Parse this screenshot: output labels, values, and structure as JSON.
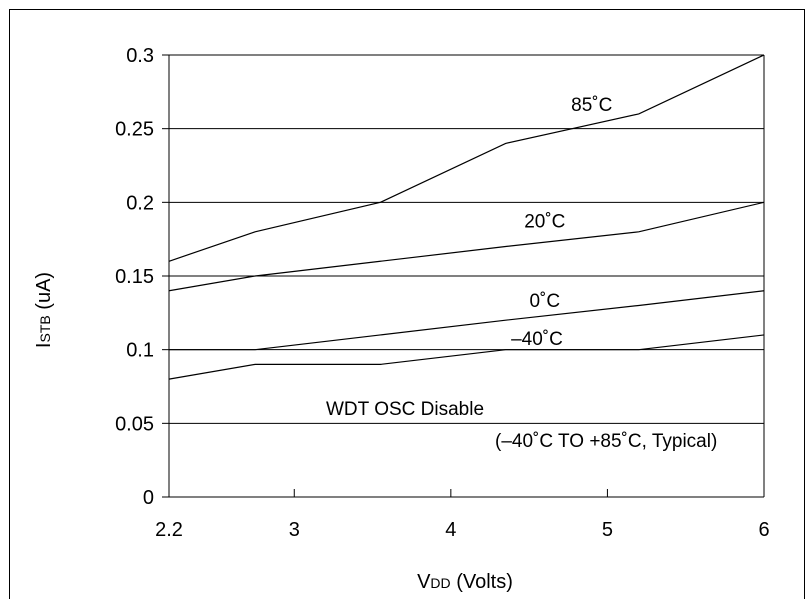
{
  "chart_data": {
    "type": "line",
    "title": "",
    "xlabel": {
      "main": "V",
      "sub": "DD",
      "rest": " (Volts)"
    },
    "ylabel": {
      "main": "I",
      "sub": "STB",
      "rest": " (uA)"
    },
    "xlim": [
      2.2,
      6
    ],
    "ylim": [
      0,
      0.3
    ],
    "x_ticks": [
      2.2,
      3,
      4,
      5,
      6
    ],
    "x_tick_labels": [
      "2.2",
      "3",
      "4",
      "5",
      "6"
    ],
    "y_ticks": [
      0,
      0.05,
      0.1,
      0.15,
      0.2,
      0.25,
      0.3
    ],
    "y_tick_labels": [
      "0",
      "0.05",
      "0.1",
      "0.15",
      "0.2",
      "0.25",
      "0.3"
    ],
    "grid": "horizontal",
    "series": [
      {
        "name": "85˚C",
        "x": [
          2.2,
          2.75,
          3.55,
          4.35,
          5.2,
          6
        ],
        "y": [
          0.16,
          0.18,
          0.2,
          0.24,
          0.26,
          0.3
        ]
      },
      {
        "name": "20˚C",
        "x": [
          2.2,
          2.75,
          3.55,
          4.35,
          5.2,
          6
        ],
        "y": [
          0.14,
          0.15,
          0.16,
          0.17,
          0.18,
          0.2
        ]
      },
      {
        "name": "0˚C",
        "x": [
          2.2,
          2.75,
          3.55,
          4.35,
          5.2,
          6
        ],
        "y": [
          0.1,
          0.1,
          0.11,
          0.12,
          0.13,
          0.14
        ]
      },
      {
        "name": "–40˚C",
        "x": [
          2.2,
          2.75,
          3.55,
          4.35,
          5.2,
          6
        ],
        "y": [
          0.08,
          0.09,
          0.09,
          0.1,
          0.1,
          0.11
        ]
      }
    ],
    "annotations": [
      {
        "id": "cond",
        "text": "WDT OSC Disable"
      },
      {
        "id": "range",
        "text": "(–40˚C TO +85˚C, Typical)"
      }
    ]
  }
}
